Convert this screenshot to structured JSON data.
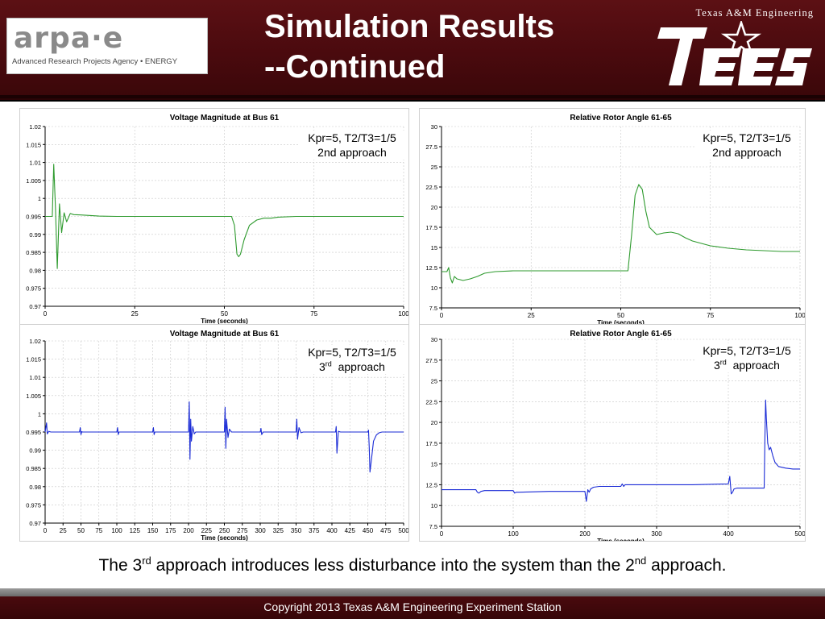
{
  "header": {
    "title_line1": "Simulation Results",
    "title_line2": "--Continued",
    "logo_left": {
      "wordmark": "arpa·e",
      "tagline": "Advanced Research Projects Agency • ENERGY"
    },
    "logo_right": {
      "caption": "Texas A&M Engineering",
      "wordmark": "TEES"
    }
  },
  "colors": {
    "header_bg": "#4a0a0e",
    "series_2nd": "#2e9a2e",
    "series_3rd": "#1a2bd6",
    "grid": "#c8c8c8"
  },
  "caption": {
    "part1": "The 3",
    "sup1": "rd",
    "part2": " approach introduces less disturbance into the system than the 2",
    "sup2": "nd",
    "part3": " approach."
  },
  "footer": {
    "text": "Copyright 2013    Texas A&M Engineering  Experiment Station"
  },
  "chart_data": [
    {
      "type": "line",
      "title": "Voltage Magnitude at Bus 61",
      "xlabel": "Time (seconds)",
      "ylabel": "",
      "xlim": [
        0,
        100
      ],
      "ylim": [
        0.97,
        1.02
      ],
      "xticks": [
        0,
        25,
        50,
        75,
        100
      ],
      "xtick_labels": [
        "0",
        "25",
        "50",
        "75",
        "100"
      ],
      "yticks": [
        0.97,
        0.975,
        0.98,
        0.985,
        0.99,
        0.995,
        1,
        1.005,
        1.01,
        1.015,
        1.02
      ],
      "ytick_labels": [
        "0.97",
        "0.975",
        "0.98",
        "0.985",
        "0.99",
        "0.995",
        "1",
        "1.005",
        "1.01",
        "1.015",
        "1.02"
      ],
      "grid": true,
      "series_color": "#2e9a2e",
      "annotation": {
        "line1": "Kpr=5, T2/T3=1/5",
        "line2_text": "2nd approach",
        "line2_sup": ""
      },
      "series": [
        {
          "x": [
            0,
            2,
            2.4,
            2.9,
            3.4,
            4,
            4.6,
            5.3,
            6,
            7,
            8,
            10,
            15,
            20,
            30,
            40,
            50,
            52,
            52.8,
            53.5,
            54,
            54.5,
            55.5,
            57,
            59,
            61,
            63,
            65,
            70,
            80,
            90,
            100
          ],
          "y": [
            0.995,
            0.995,
            1.0095,
            0.997,
            0.9805,
            0.9985,
            0.9905,
            0.996,
            0.9935,
            0.9958,
            0.9955,
            0.9954,
            0.9951,
            0.995,
            0.995,
            0.995,
            0.995,
            0.995,
            0.9925,
            0.9845,
            0.9838,
            0.9845,
            0.9885,
            0.9925,
            0.994,
            0.9945,
            0.9945,
            0.9948,
            0.995,
            0.995,
            0.995,
            0.995
          ]
        }
      ]
    },
    {
      "type": "line",
      "title": "Relative Rotor Angle 61-65",
      "xlabel": "Time (seconds)",
      "ylabel": "",
      "xlim": [
        0,
        100
      ],
      "ylim": [
        7.5,
        30
      ],
      "xticks": [
        0,
        25,
        50,
        75,
        100
      ],
      "xtick_labels": [
        "0",
        "25",
        "50",
        "75",
        "100"
      ],
      "yticks": [
        7.5,
        10,
        12.5,
        15,
        17.5,
        20,
        22.5,
        25,
        27.5,
        30
      ],
      "ytick_labels": [
        "7.5",
        "10",
        "12.5",
        "15",
        "17.5",
        "20",
        "22.5",
        "25",
        "27.5",
        "30"
      ],
      "grid": true,
      "series_color": "#2e9a2e",
      "annotation": {
        "line1": "Kpr=5, T2/T3=1/5",
        "line2_text": "2nd approach",
        "line2_sup": ""
      },
      "series": [
        {
          "x": [
            0,
            1.5,
            2,
            2.5,
            3,
            3.6,
            4.3,
            5.2,
            6,
            8,
            10,
            12,
            15,
            20,
            30,
            40,
            50,
            52,
            53,
            54,
            55,
            56,
            57,
            58,
            60,
            62,
            64,
            66,
            68,
            70,
            75,
            80,
            85,
            90,
            95,
            100
          ],
          "y": [
            12,
            12,
            12.5,
            11.2,
            10.6,
            11.4,
            11.1,
            11.0,
            10.9,
            11.1,
            11.4,
            11.8,
            12.0,
            12.1,
            12.1,
            12.1,
            12.1,
            12.1,
            16.5,
            21.5,
            22.8,
            22.2,
            19.5,
            17.5,
            16.6,
            16.8,
            16.9,
            16.7,
            16.2,
            15.8,
            15.2,
            14.9,
            14.7,
            14.6,
            14.5,
            14.5
          ]
        }
      ]
    },
    {
      "type": "line",
      "title": "Voltage Magnitude at Bus 61",
      "xlabel": "Time (seconds)",
      "ylabel": "",
      "xlim": [
        0,
        500
      ],
      "ylim": [
        0.97,
        1.02
      ],
      "xticks": [
        0,
        25,
        50,
        75,
        100,
        125,
        150,
        175,
        200,
        225,
        250,
        275,
        300,
        325,
        350,
        375,
        400,
        425,
        450,
        475,
        500
      ],
      "xtick_labels": [
        "0",
        "25",
        "50",
        "75",
        "100",
        "125",
        "150",
        "175",
        "200",
        "225",
        "250",
        "275",
        "300",
        "325",
        "350",
        "375",
        "400",
        "425",
        "450",
        "475",
        "500"
      ],
      "yticks": [
        0.97,
        0.975,
        0.98,
        0.985,
        0.99,
        0.995,
        1,
        1.005,
        1.01,
        1.015,
        1.02
      ],
      "ytick_labels": [
        "0.97",
        "0.975",
        "0.98",
        "0.985",
        "0.99",
        "0.995",
        "1",
        "1.005",
        "1.01",
        "1.015",
        "1.02"
      ],
      "grid": true,
      "series_color": "#1a2bd6",
      "annotation": {
        "line1": "Kpr=5, T2/T3=1/5",
        "line2_text": "3",
        "line2_sup": "rd"
      },
      "series": [
        {
          "x": [
            0,
            2,
            3,
            5,
            8,
            10,
            48,
            49,
            50,
            51,
            52,
            100,
            101,
            102,
            103,
            150,
            151,
            152,
            153,
            200,
            201,
            202,
            203,
            204,
            206,
            208,
            210,
            250,
            251,
            252,
            253,
            255,
            257,
            260,
            300,
            301,
            302,
            304,
            350,
            351,
            352,
            354,
            357,
            360,
            405,
            406,
            407,
            409,
            412,
            450,
            451,
            452,
            453,
            455,
            458,
            462,
            466,
            470,
            480,
            500
          ],
          "y": [
            0.995,
            0.9975,
            0.9945,
            0.9952,
            0.995,
            0.995,
            0.995,
            0.9962,
            0.9943,
            0.9951,
            0.995,
            0.995,
            0.9962,
            0.9943,
            0.995,
            0.995,
            0.9962,
            0.9943,
            0.995,
            0.995,
            1.0033,
            0.9875,
            0.9985,
            0.9925,
            0.9965,
            0.9945,
            0.995,
            0.995,
            1.0018,
            0.9905,
            0.9985,
            0.9935,
            0.9958,
            0.995,
            0.995,
            0.996,
            0.9943,
            0.995,
            0.995,
            0.9985,
            0.993,
            0.9962,
            0.9948,
            0.995,
            0.995,
            0.9965,
            0.9892,
            0.9952,
            0.995,
            0.995,
            0.9955,
            0.9908,
            0.984,
            0.9872,
            0.9925,
            0.9942,
            0.9948,
            0.995,
            0.995,
            0.995
          ]
        }
      ]
    },
    {
      "type": "line",
      "title": "Relative Rotor Angle 61-65",
      "xlabel": "Time (seconds)",
      "ylabel": "",
      "xlim": [
        0,
        500
      ],
      "ylim": [
        7.5,
        30
      ],
      "xticks": [
        0,
        100,
        200,
        300,
        400,
        500
      ],
      "xtick_labels": [
        "0",
        "100",
        "200",
        "300",
        "400",
        "500"
      ],
      "yticks": [
        7.5,
        10,
        12.5,
        15,
        17.5,
        20,
        22.5,
        25,
        27.5,
        30
      ],
      "ytick_labels": [
        "7.5",
        "10",
        "12.5",
        "15",
        "17.5",
        "20",
        "22.5",
        "25",
        "27.5",
        "30"
      ],
      "grid": true,
      "series_color": "#1a2bd6",
      "annotation": {
        "line1": "Kpr=5, T2/T3=1/5",
        "line2_text": "3",
        "line2_sup": "rd"
      },
      "series": [
        {
          "x": [
            0,
            48,
            50,
            52,
            55,
            60,
            100,
            102,
            104,
            108,
            150,
            200,
            202,
            204,
            206,
            208,
            212,
            220,
            250,
            252,
            254,
            256,
            300,
            350,
            400,
            402,
            404,
            406,
            408,
            412,
            415,
            450,
            451,
            452,
            453,
            455,
            457,
            459,
            462,
            465,
            470,
            480,
            490,
            500
          ],
          "y": [
            11.9,
            11.9,
            11.6,
            11.5,
            11.7,
            11.8,
            11.8,
            11.5,
            11.6,
            11.6,
            11.7,
            11.7,
            10.5,
            11.9,
            11.6,
            12.0,
            12.2,
            12.3,
            12.3,
            12.6,
            12.3,
            12.5,
            12.5,
            12.5,
            12.6,
            13.5,
            11.4,
            11.6,
            12.0,
            12.1,
            12.1,
            12.1,
            18.0,
            22.7,
            20.5,
            17.5,
            16.7,
            17.0,
            16.0,
            15.2,
            14.7,
            14.5,
            14.4,
            14.4
          ]
        }
      ]
    }
  ]
}
